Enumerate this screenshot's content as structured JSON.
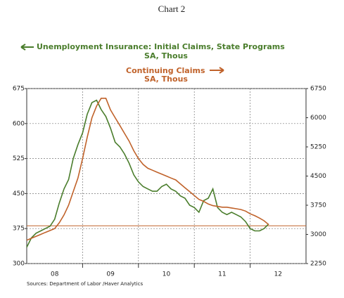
{
  "chart_data": {
    "type": "line",
    "title": "Chart 2",
    "legend_entries": [
      {
        "label": "Unemployment Insurance: Initial Claims, State Programs",
        "sub": "SA, Thous",
        "series": 0
      },
      {
        "label": "Continuing Claims",
        "sub": "SA, Thous",
        "series": 1
      }
    ],
    "source": "Sources:  Department of Labor /Haver Analytics",
    "x": [
      2008,
      2008.083,
      2008.167,
      2008.25,
      2008.333,
      2008.417,
      2008.5,
      2008.583,
      2008.667,
      2008.75,
      2008.833,
      2008.917,
      2009,
      2009.083,
      2009.167,
      2009.25,
      2009.333,
      2009.417,
      2009.5,
      2009.583,
      2009.667,
      2009.75,
      2009.833,
      2009.917,
      2010,
      2010.083,
      2010.167,
      2010.25,
      2010.333,
      2010.417,
      2010.5,
      2010.583,
      2010.667,
      2010.75,
      2010.833,
      2010.917,
      2011,
      2011.083,
      2011.167,
      2011.25,
      2011.333,
      2011.417,
      2011.5,
      2011.583,
      2011.667,
      2011.75,
      2011.833,
      2011.917,
      2012,
      2012.083,
      2012.167,
      2012.25,
      2012.333
    ],
    "series": [
      {
        "name": "Unemployment Insurance: Initial Claims, State Programs",
        "color": "#4a7d2c",
        "values": [
          335,
          355,
          365,
          370,
          375,
          380,
          395,
          430,
          460,
          480,
          525,
          555,
          580,
          620,
          645,
          650,
          630,
          615,
          590,
          560,
          550,
          535,
          515,
          490,
          475,
          465,
          460,
          455,
          455,
          465,
          470,
          460,
          455,
          445,
          440,
          425,
          420,
          410,
          435,
          440,
          460,
          420,
          410,
          405,
          410,
          405,
          400,
          390,
          375,
          370,
          370,
          375,
          385
        ]
      },
      {
        "name": "Continuing Claims",
        "color": "#c0622a",
        "axis": "y2",
        "values": [
          2850,
          2900,
          2950,
          3000,
          3050,
          3100,
          3150,
          3300,
          3500,
          3750,
          4100,
          4450,
          4950,
          5500,
          6000,
          6300,
          6500,
          6500,
          6200,
          6000,
          5800,
          5600,
          5400,
          5150,
          4950,
          4800,
          4700,
          4650,
          4600,
          4550,
          4500,
          4450,
          4400,
          4300,
          4200,
          4100,
          4000,
          3900,
          3850,
          3780,
          3740,
          3720,
          3700,
          3700,
          3680,
          3660,
          3640,
          3600,
          3530,
          3480,
          3420,
          3350,
          3250
        ]
      }
    ],
    "hline": {
      "value": 381,
      "color": "#c0622a"
    },
    "xlim": [
      2008,
      2013
    ],
    "xticks": [
      {
        "value": 2008.5,
        "label": "08"
      },
      {
        "value": 2009.5,
        "label": "09"
      },
      {
        "value": 2010.5,
        "label": "10"
      },
      {
        "value": 2011.5,
        "label": "11"
      },
      {
        "value": 2012.5,
        "label": "12"
      }
    ],
    "xgrid": [
      2009,
      2010,
      2011,
      2012
    ],
    "ylim": [
      300,
      675
    ],
    "yticks": [
      300,
      375,
      450,
      525,
      600,
      675
    ],
    "y2lim": [
      2250,
      6750
    ],
    "y2ticks": [
      2250,
      3000,
      3750,
      4500,
      5250,
      6000,
      6750
    ],
    "grid": true
  }
}
